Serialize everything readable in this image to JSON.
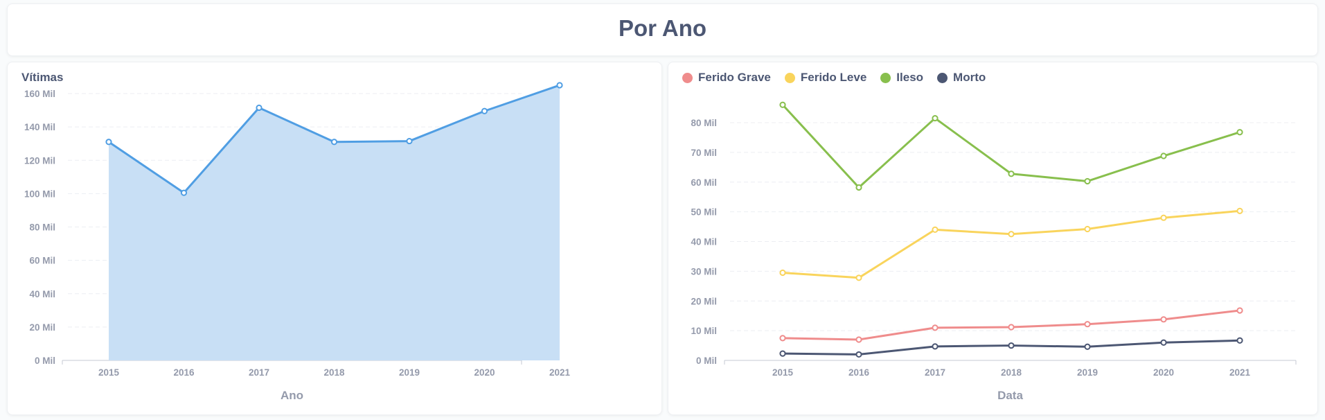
{
  "header": {
    "title": "Por Ano"
  },
  "chart_data": [
    {
      "type": "area",
      "title": "Vítimas",
      "xlabel": "Ano",
      "ylabel": "",
      "categories": [
        "2015",
        "2016",
        "2017",
        "2018",
        "2019",
        "2020",
        "2021"
      ],
      "series": [
        {
          "name": "Vítimas",
          "color": "#509ee3",
          "fill": "#c8dff5",
          "values": [
            131000,
            100500,
            151500,
            131000,
            131500,
            149500,
            165000
          ]
        }
      ],
      "ylim": [
        0,
        160000
      ],
      "yticks": [
        0,
        20000,
        40000,
        60000,
        80000,
        100000,
        120000,
        140000,
        160000
      ],
      "ytick_labels": [
        "0 Mil",
        "20 Mil",
        "40 Mil",
        "60 Mil",
        "80 Mil",
        "100 Mil",
        "120 Mil",
        "140 Mil",
        "160 Mil"
      ],
      "grid": true,
      "legend": "none"
    },
    {
      "type": "line",
      "title": "",
      "xlabel": "Data",
      "ylabel": "",
      "categories": [
        "2015",
        "2016",
        "2017",
        "2018",
        "2019",
        "2020",
        "2021"
      ],
      "series": [
        {
          "name": "Ferido Grave",
          "color": "#ef8c8c",
          "values": [
            7500,
            7000,
            11000,
            11200,
            12200,
            13800,
            16800
          ]
        },
        {
          "name": "Ferido Leve",
          "color": "#f9d45c",
          "values": [
            29500,
            27800,
            44000,
            42500,
            44200,
            48000,
            50300
          ]
        },
        {
          "name": "Ileso",
          "color": "#88bf4d",
          "values": [
            86000,
            58200,
            81500,
            62800,
            60300,
            68800,
            76800
          ]
        },
        {
          "name": "Morto",
          "color": "#4c5773",
          "values": [
            2300,
            2000,
            4700,
            5000,
            4600,
            6000,
            6700
          ]
        }
      ],
      "ylim": [
        0,
        80000
      ],
      "yticks": [
        0,
        10000,
        20000,
        30000,
        40000,
        50000,
        60000,
        70000,
        80000
      ],
      "ytick_labels": [
        "0 Mil",
        "10 Mil",
        "20 Mil",
        "30 Mil",
        "40 Mil",
        "50 Mil",
        "60 Mil",
        "70 Mil",
        "80 Mil"
      ],
      "grid": true,
      "legend": "top-left"
    }
  ]
}
